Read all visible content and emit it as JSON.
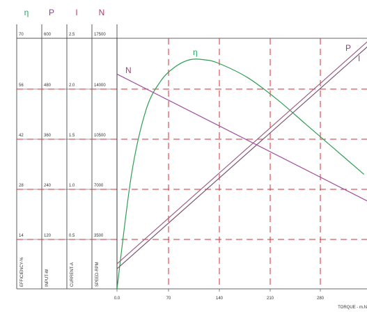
{
  "colors": {
    "efficiency": "#2e9e55",
    "input": "#a06085",
    "current": "#7a5570",
    "speed": "#a050a0",
    "grid": "#d23232",
    "header_eta": "#26a65b",
    "header_p": "#8a3f86",
    "header_i": "#c23a64",
    "header_n": "#b03a78"
  },
  "chart_data": {
    "type": "line",
    "xlabel": "TORQUE - m.N",
    "x_ticks": [
      "0.0",
      "70",
      "140",
      "210",
      "280"
    ],
    "xlim": [
      0,
      350
    ],
    "grid": true,
    "axes": [
      {
        "symbol": "η",
        "label": "EFFICIENCY-%",
        "ticks": [
          "70",
          "56",
          "42",
          "28",
          "14"
        ],
        "range": [
          0,
          70
        ]
      },
      {
        "symbol": "P",
        "label": "INPUT-W",
        "ticks": [
          "600",
          "480",
          "360",
          "240",
          "120"
        ],
        "range": [
          0,
          600
        ]
      },
      {
        "symbol": "I",
        "label": "CURRENT-A",
        "ticks": [
          "2.5",
          "2.0",
          "1.5",
          "1.0",
          "0.5"
        ],
        "range": [
          0,
          2.5
        ]
      },
      {
        "symbol": "N",
        "label": "SPEED-RPM",
        "ticks": [
          "17500",
          "14000",
          "10500",
          "7000",
          "3500"
        ],
        "range": [
          0,
          17500
        ]
      }
    ],
    "series": [
      {
        "name": "η",
        "axis": 0,
        "x": [
          0,
          20,
          40,
          60,
          80,
          100,
          120,
          140,
          180,
          220,
          260,
          300,
          340
        ],
        "values": [
          0,
          32,
          50,
          58,
          62,
          64,
          64,
          63,
          59,
          53,
          46,
          39,
          32
        ]
      },
      {
        "name": "P",
        "axis": 1,
        "x": [
          0,
          350
        ],
        "values": [
          60,
          600
        ]
      },
      {
        "name": "I",
        "axis": 2,
        "x": [
          0,
          350
        ],
        "values": [
          0.2,
          2.45
        ]
      },
      {
        "name": "N",
        "axis": 3,
        "x": [
          0,
          350
        ],
        "values": [
          15000,
          6000
        ]
      }
    ]
  }
}
